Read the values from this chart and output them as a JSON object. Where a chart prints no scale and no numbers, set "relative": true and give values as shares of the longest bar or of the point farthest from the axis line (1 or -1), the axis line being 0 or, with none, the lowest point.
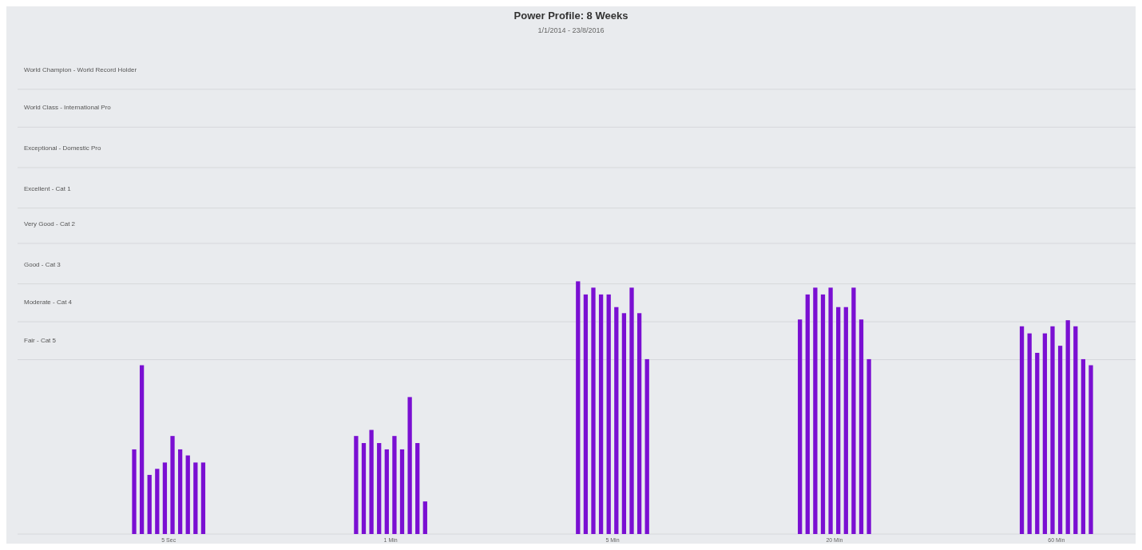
{
  "chart_data": {
    "type": "bar",
    "title": "Power Profile: 8 Weeks",
    "subtitle": "1/1/2014 - 23/8/2016",
    "relative": true,
    "grid": false,
    "categories": [
      "5 Sec",
      "1 Min",
      "5 Min",
      "20 Min",
      "60 Min"
    ],
    "series": [
      {
        "color": "#7a0fd2",
        "values": [
          0.335,
          0.388,
          1.0,
          0.849,
          0.822
        ]
      },
      {
        "color": "#7a0fd2",
        "values": [
          0.668,
          0.36,
          0.948,
          0.948,
          0.794
        ]
      },
      {
        "color": "#7a0fd2",
        "values": [
          0.234,
          0.412,
          0.975,
          0.975,
          0.717
        ]
      },
      {
        "color": "#7a0fd2",
        "values": [
          0.258,
          0.36,
          0.948,
          0.948,
          0.794
        ]
      },
      {
        "color": "#7a0fd2",
        "values": [
          0.283,
          0.335,
          0.948,
          0.975,
          0.822
        ]
      },
      {
        "color": "#7a0fd2",
        "values": [
          0.388,
          0.388,
          0.898,
          0.898,
          0.745
        ]
      },
      {
        "color": "#7a0fd2",
        "values": [
          0.335,
          0.335,
          0.874,
          0.898,
          0.846
        ]
      },
      {
        "color": "#7a0fd2",
        "values": [
          0.311,
          0.542,
          0.975,
          0.975,
          0.822
        ]
      },
      {
        "color": "#7a0fd2",
        "values": [
          0.283,
          0.36,
          0.874,
          0.849,
          0.692
        ]
      },
      {
        "color": "#7a0fd2",
        "values": [
          0.283,
          0.129,
          0.692,
          0.692,
          0.668
        ]
      }
    ],
    "ref_lines": [
      {
        "axis": "y",
        "value": 1.76,
        "label": "World Champion - World Record Holder"
      },
      {
        "axis": "y",
        "value": 1.61,
        "label": "World Class - International Pro"
      },
      {
        "axis": "y",
        "value": 1.45,
        "label": "Exceptional - Domestic Pro"
      },
      {
        "axis": "y",
        "value": 1.29,
        "label": "Excellent - Cat 1"
      },
      {
        "axis": "y",
        "value": 1.15,
        "label": "Very Good - Cat 2"
      },
      {
        "axis": "y",
        "value": 0.99,
        "label": "Good - Cat 3"
      },
      {
        "axis": "y",
        "value": 0.84,
        "label": "Moderate - Cat 4"
      },
      {
        "axis": "y",
        "value": 0.69,
        "label": "Fair - Cat 5"
      }
    ]
  }
}
